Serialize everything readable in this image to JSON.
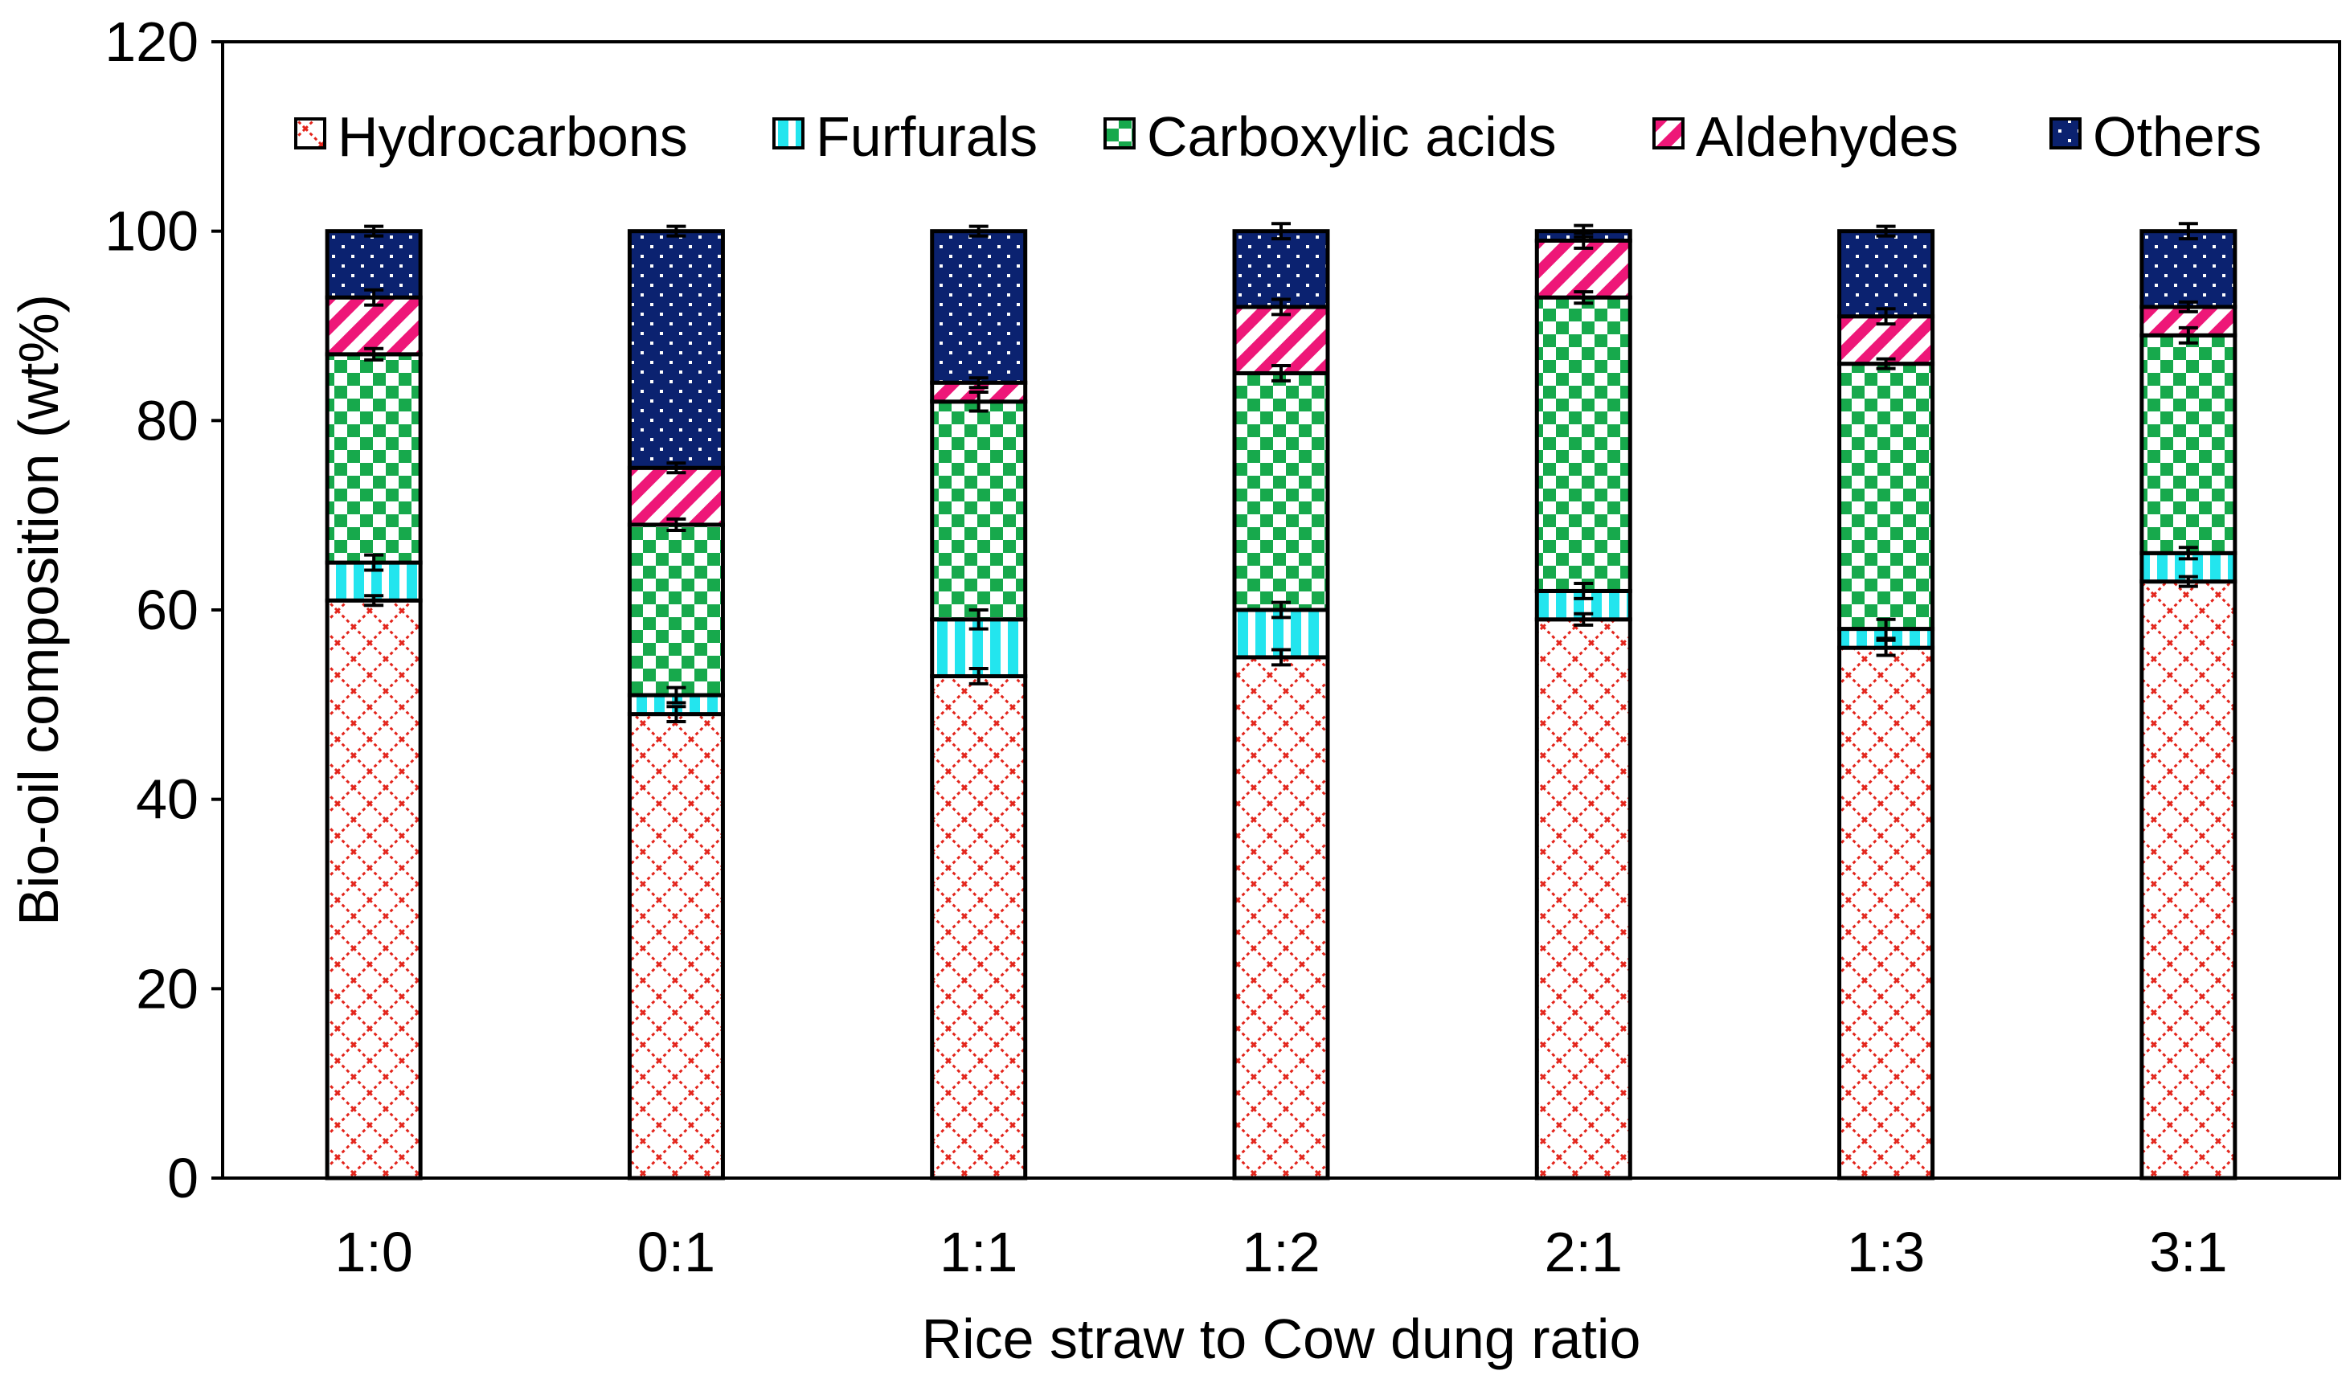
{
  "chart_data": {
    "type": "bar",
    "stacked": true,
    "title": "",
    "xlabel": "Rice straw to Cow dung ratio",
    "ylabel": "Bio-oil composition (wt%)",
    "ylim": [
      0,
      120
    ],
    "yticks": [
      "0",
      "20",
      "40",
      "60",
      "80",
      "100",
      "120"
    ],
    "grid": false,
    "legend_position": "top",
    "categories": [
      "1:0",
      "0:1",
      "1:1",
      "1:2",
      "2:1",
      "1:3",
      "3:1"
    ],
    "series": [
      {
        "name": "Hydrocarbons",
        "pattern": "hydrocarbons",
        "values": [
          61,
          49,
          53,
          55,
          59,
          56,
          63
        ],
        "errors": [
          0.5,
          0.8,
          0.8,
          0.8,
          0.6,
          0.8,
          0.5
        ]
      },
      {
        "name": "Furfurals",
        "pattern": "furfurals",
        "values": [
          4,
          2,
          6,
          5,
          3,
          2,
          3
        ],
        "errors": [
          0.8,
          0.8,
          1.0,
          0.8,
          0.8,
          1.0,
          0.6
        ]
      },
      {
        "name": "Carboxylic acids",
        "pattern": "carboxylic",
        "values": [
          22,
          18,
          23,
          25,
          31,
          28,
          23
        ],
        "errors": [
          0.6,
          0.6,
          1.0,
          0.8,
          0.6,
          0.4,
          0.8
        ]
      },
      {
        "name": "Aldehydes",
        "pattern": "aldehydes",
        "values": [
          6,
          6,
          2,
          7,
          6,
          5,
          3
        ],
        "errors": [
          0.8,
          0.5,
          0.5,
          0.8,
          0.8,
          0.8,
          0.5
        ]
      },
      {
        "name": "Others",
        "pattern": "others",
        "values": [
          7,
          25,
          16,
          8,
          1,
          9,
          8
        ],
        "errors": [
          0.5,
          0.3,
          0.4,
          0.8,
          0.6,
          0.5,
          0.8
        ]
      }
    ],
    "colors": {
      "hydrocarbons": "#e3241b",
      "furfurals": "#23e5ee",
      "carboxylic": "#17a94c",
      "aldehydes": "#ee1778",
      "others": "#0b2270"
    }
  }
}
